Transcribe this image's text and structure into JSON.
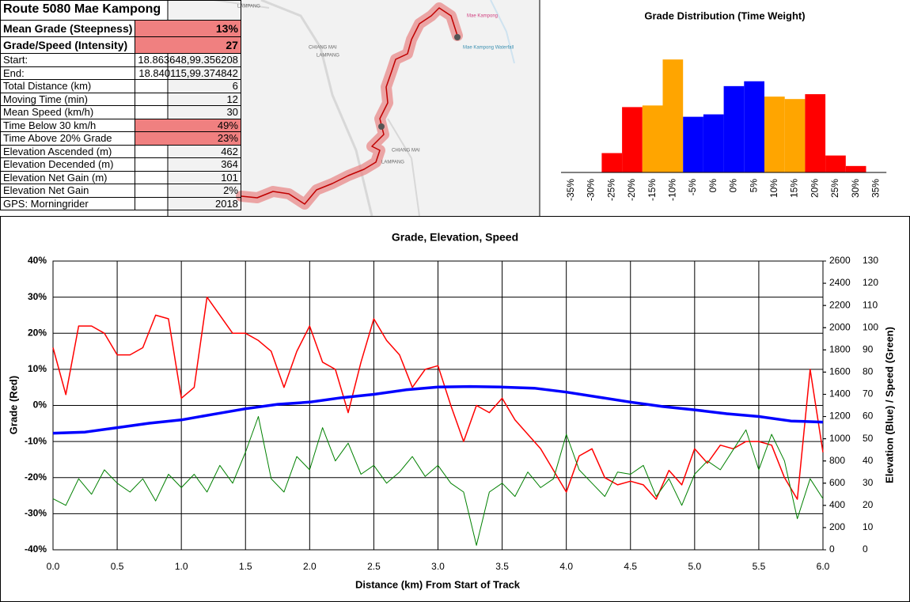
{
  "table": {
    "title": "Route 5080 Mae Kampong",
    "rows": [
      {
        "label": "Mean Grade (Steepness)",
        "value": "13%",
        "highlight": true
      },
      {
        "label": "Grade/Speed (Intensity)",
        "value": "27",
        "highlight": true
      },
      {
        "label": "Start:",
        "value": "18.863648,99.356208"
      },
      {
        "label": "End:",
        "value": "18.840115,99.374842"
      },
      {
        "label": "Total Distance (km)",
        "value": "6"
      },
      {
        "label": "Moving Time (min)",
        "value": "12"
      },
      {
        "label": "Mean Speed (km/h)",
        "value": "30"
      },
      {
        "label": "Time Below 30 km/h",
        "value": "49%",
        "highlight": true
      },
      {
        "label": "Time Above 20% Grade",
        "value": "23%",
        "highlight": true
      },
      {
        "label": "Elevation Ascended (m)",
        "value": "462"
      },
      {
        "label": "Elevation Decended (m)",
        "value": "364"
      },
      {
        "label": "Elevation Net Gain (m)",
        "value": "101"
      },
      {
        "label": "Elevation Net Gain",
        "value": "2%"
      },
      {
        "label": "GPS: Morningrider",
        "value": "2018"
      }
    ],
    "highlight_color": "#f08080"
  },
  "map": {
    "labels": [
      "LAMPANG",
      "CHIANG MAI",
      "LAMPANG",
      "CHIANG MAI",
      "LAMPANG",
      "Mae Kampong",
      "Mae Kampong Waterfall"
    ]
  },
  "chart_data": [
    {
      "type": "bar",
      "title": "Grade Distribution (Time Weight)",
      "categories": [
        "-35%",
        "-30%",
        "-25%",
        "-20%",
        "-15%",
        "-10%",
        "-5%",
        "0%",
        "0%",
        "5%",
        "10%",
        "15%",
        "20%",
        "25%",
        "30%",
        "35%"
      ],
      "values": [
        0,
        0,
        2.4,
        8.1,
        8.3,
        14.0,
        6.9,
        7.2,
        10.7,
        11.3,
        9.4,
        9.1,
        9.7,
        2.1,
        0.8,
        0
      ],
      "colors": [
        "#ff0000",
        "#ff0000",
        "#ff0000",
        "#ff0000",
        "#ffa500",
        "#ffa500",
        "#0000ff",
        "#0000ff",
        "#0000ff",
        "#0000ff",
        "#ffa500",
        "#ffa500",
        "#ff0000",
        "#ff0000",
        "#ff0000",
        "#ff0000"
      ],
      "ylim": [
        0,
        15
      ]
    },
    {
      "type": "line",
      "title": "Grade, Elevation, Speed",
      "xlabel": "Distance (km) From Start of Track",
      "ylabel": "Grade (Red)",
      "y2label": "Elevation (Blue) / Speed (Green)",
      "grid": true,
      "xlim": [
        0,
        6
      ],
      "xticks": [
        {
          "value": 0,
          "label": "0.0"
        },
        0.5,
        {
          "value": 1,
          "label": "1.0"
        },
        1.5,
        {
          "value": 2,
          "label": "2.0"
        },
        2.5,
        {
          "value": 3,
          "label": "3.0"
        },
        3.5,
        {
          "value": 4,
          "label": "4.0"
        },
        4.5,
        {
          "value": 5,
          "label": "5.0"
        },
        5.5,
        {
          "value": 6,
          "label": "6.0"
        }
      ],
      "ylim": [
        -40,
        40
      ],
      "yticks": [
        {
          "value": -40,
          "label": "-40%"
        },
        {
          "value": -30,
          "label": "-30%"
        },
        {
          "value": -20,
          "label": "-20%"
        },
        {
          "value": -10,
          "label": "-10%"
        },
        {
          "value": 0,
          "label": "0%"
        },
        {
          "value": 10,
          "label": "10%"
        },
        {
          "value": 20,
          "label": "20%"
        },
        {
          "value": 30,
          "label": "30%"
        },
        {
          "value": 40,
          "label": "40%"
        }
      ],
      "y2lim": [
        0,
        2600
      ],
      "y2ticks": [
        0,
        200,
        400,
        600,
        800,
        1000,
        1200,
        1400,
        1600,
        1800,
        2000,
        2200,
        2400,
        2600
      ],
      "y3lim": [
        0,
        130
      ],
      "y3ticks": [
        0,
        10,
        20,
        30,
        40,
        50,
        60,
        70,
        80,
        90,
        100,
        110,
        120,
        130
      ],
      "x": [
        0,
        0.1,
        0.2,
        0.3,
        0.4,
        0.5,
        0.6,
        0.7,
        0.8,
        0.9,
        1,
        1.1,
        1.2,
        1.3,
        1.4,
        1.5,
        1.6,
        1.7,
        1.8,
        1.9,
        2,
        2.1,
        2.2,
        2.3,
        2.4,
        2.5,
        2.6,
        2.7,
        2.8,
        2.9,
        3,
        3.1,
        3.2,
        3.3,
        3.4,
        3.5,
        3.6,
        3.7,
        3.8,
        3.9,
        4,
        4.1,
        4.2,
        4.3,
        4.4,
        4.5,
        4.6,
        4.7,
        4.8,
        4.9,
        5,
        5.1,
        5.2,
        5.3,
        5.4,
        5.5,
        5.6,
        5.7,
        5.8,
        5.9,
        6
      ],
      "series": [
        {
          "color": "#ff0000",
          "axis": "y",
          "width": 1.5,
          "values": [
            16,
            3,
            22,
            22,
            20,
            14,
            14,
            16,
            25,
            24,
            2,
            5,
            30,
            25,
            20,
            20,
            18,
            15,
            5,
            15,
            22,
            12,
            10,
            -2,
            12,
            24,
            18,
            14,
            5,
            10,
            11,
            0,
            -10,
            0,
            -2,
            2,
            -4,
            -8,
            -12,
            -18,
            -24,
            -14,
            -12,
            -20,
            -22,
            -21,
            -22,
            -26,
            -18,
            -22,
            -12,
            -16,
            -11,
            -12,
            -10,
            -10,
            -11,
            -20,
            -26,
            10,
            -13
          ]
        },
        {
          "color": "#0000ff",
          "axis": "y2",
          "width": 3.5,
          "x": [
            0,
            0.25,
            0.5,
            0.75,
            1,
            1.25,
            1.5,
            1.75,
            2,
            2.25,
            2.5,
            2.75,
            3,
            3.25,
            3.5,
            3.75,
            4,
            4.25,
            4.5,
            4.75,
            5,
            5.25,
            5.5,
            5.75,
            6
          ],
          "values": [
            1050,
            1060,
            1100,
            1140,
            1170,
            1220,
            1270,
            1310,
            1330,
            1370,
            1400,
            1440,
            1465,
            1470,
            1465,
            1455,
            1420,
            1375,
            1330,
            1290,
            1260,
            1225,
            1200,
            1160,
            1150
          ]
        },
        {
          "color": "#008000",
          "axis": "y3",
          "width": 1,
          "values": [
            23,
            20,
            32,
            25,
            36,
            30,
            26,
            32,
            22,
            34,
            28,
            34,
            26,
            38,
            30,
            44,
            60,
            32,
            26,
            42,
            36,
            55,
            40,
            48,
            34,
            38,
            30,
            35,
            42,
            33,
            38,
            30,
            26,
            2,
            26,
            30,
            24,
            35,
            28,
            32,
            52,
            36,
            30,
            24,
            35,
            34,
            38,
            24,
            32,
            20,
            34,
            40,
            36,
            45,
            54,
            36,
            52,
            40,
            14,
            32,
            23
          ]
        }
      ]
    }
  ]
}
